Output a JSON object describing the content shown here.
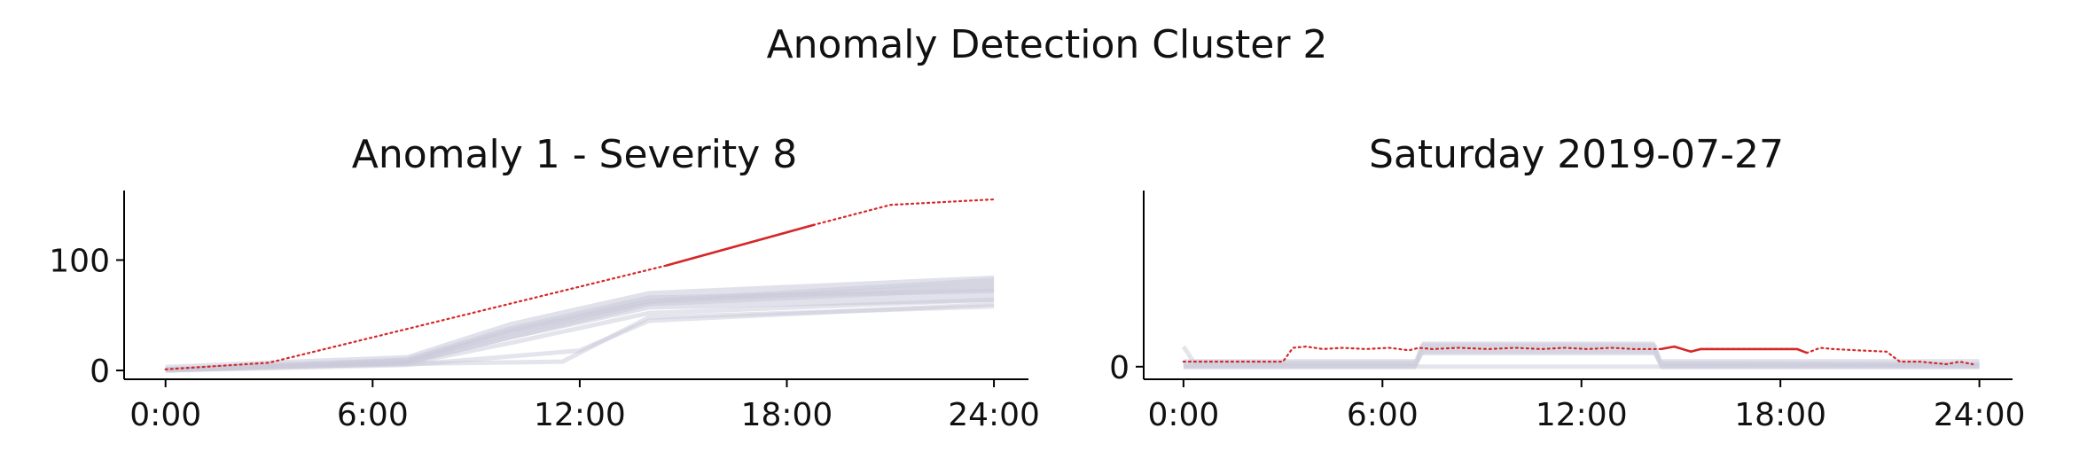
{
  "figure": {
    "suptitle": "Anomaly Detection Cluster 2"
  },
  "chart_data": [
    {
      "type": "line",
      "title": "Anomaly 1 - Severity 8",
      "xlabel": "",
      "ylabel": "",
      "x_tick_labels": [
        "0:00",
        "6:00",
        "12:00",
        "18:00",
        "24:00"
      ],
      "x_ticks": [
        0,
        6,
        12,
        18,
        24
      ],
      "y_tick_labels": [
        "0",
        "100"
      ],
      "y_ticks": [
        0,
        100
      ],
      "xlim": [
        -1.2,
        25
      ],
      "ylim": [
        -8,
        163
      ],
      "grid": false,
      "legend": "none",
      "colors": {
        "highlight": "#d62728",
        "background": "#c9c9da"
      },
      "background_series_band": {
        "x": [
          0,
          3,
          7,
          10,
          14,
          24
        ],
        "low": [
          0,
          2,
          5,
          28,
          55,
          62
        ],
        "high": [
          5,
          9,
          14,
          44,
          72,
          86
        ]
      },
      "background_series": [
        {
          "x": [
            0,
            3,
            7,
            10,
            14,
            24
          ],
          "values": [
            1,
            5,
            9,
            36,
            63,
            82
          ]
        },
        {
          "x": [
            0,
            3,
            7,
            10,
            14,
            24
          ],
          "values": [
            1,
            4,
            8,
            34,
            62,
            78
          ]
        },
        {
          "x": [
            0,
            3,
            7,
            10,
            14,
            24
          ],
          "values": [
            0,
            3,
            7,
            30,
            60,
            74
          ]
        },
        {
          "x": [
            0,
            3,
            7,
            10,
            14,
            24
          ],
          "values": [
            1,
            4,
            10,
            38,
            66,
            72
          ]
        },
        {
          "x": [
            0,
            3,
            7,
            12,
            14,
            24
          ],
          "values": [
            0,
            2,
            5,
            18,
            45,
            60
          ]
        },
        {
          "x": [
            0,
            3,
            7,
            11.5,
            14,
            24
          ],
          "values": [
            0,
            3,
            6,
            8,
            48,
            58
          ]
        },
        {
          "x": [
            0,
            3,
            7,
            10,
            14,
            24
          ],
          "values": [
            0,
            3,
            6,
            25,
            52,
            64
          ]
        }
      ],
      "highlight_series": {
        "dotted": {
          "x": [
            0,
            3,
            14.5,
            18.8,
            21,
            24
          ],
          "values": [
            1,
            7,
            95,
            132,
            150,
            155
          ]
        },
        "solid": {
          "x": [
            14.5,
            18.8
          ],
          "values": [
            95,
            132
          ]
        }
      }
    },
    {
      "type": "line",
      "title": "Saturday 2019-07-27",
      "xlabel": "",
      "ylabel": "",
      "x_tick_labels": [
        "0:00",
        "6:00",
        "12:00",
        "18:00",
        "24:00"
      ],
      "x_ticks": [
        0,
        6,
        12,
        18,
        24
      ],
      "y_tick_labels": [
        "0"
      ],
      "y_ticks": [
        0
      ],
      "xlim": [
        -1.2,
        25
      ],
      "ylim": [
        -1,
        14
      ],
      "grid": false,
      "legend": "none",
      "colors": {
        "highlight": "#d62728",
        "background": "#c9c9da"
      },
      "background_series_band": {
        "x": [
          0,
          3,
          7,
          7.2,
          14.2,
          14.4,
          24
        ],
        "low": [
          -0.2,
          -0.2,
          -0.2,
          0.9,
          0.9,
          -0.2,
          -0.2
        ],
        "high": [
          0.6,
          0.6,
          0.6,
          2.0,
          2.0,
          0.6,
          0.6
        ]
      },
      "background_series": [
        {
          "x": [
            0,
            0.3,
            3,
            7,
            7.2,
            14.2,
            14.4,
            24
          ],
          "values": [
            1.6,
            0.4,
            0.3,
            0.3,
            1.7,
            1.7,
            0.3,
            0.2
          ]
        },
        {
          "x": [
            0,
            3,
            7,
            7.2,
            14.2,
            14.4,
            24
          ],
          "values": [
            0.1,
            0.1,
            0.1,
            1.2,
            1.2,
            0.1,
            0.1
          ]
        },
        {
          "x": [
            0,
            24
          ],
          "values": [
            0.0,
            0.0
          ]
        }
      ],
      "highlight_series": {
        "dotted": {
          "x": [
            0,
            1.5,
            3,
            3.3,
            3.7,
            4.2,
            4.8,
            5.5,
            6.2,
            6.8,
            7.1,
            7.5,
            8.3,
            9.2,
            10,
            10.8,
            11.5,
            12.2,
            12.9,
            13.6,
            14,
            14.4,
            14.8,
            15.3,
            15.6,
            18.5,
            18.8,
            19.2,
            19.6,
            20.3,
            21.2,
            21.6,
            22.2,
            23,
            23.4,
            23.8
          ],
          "values": [
            0.4,
            0.4,
            0.4,
            1.5,
            1.6,
            1.4,
            1.5,
            1.4,
            1.5,
            1.3,
            1.5,
            1.4,
            1.5,
            1.4,
            1.5,
            1.4,
            1.5,
            1.4,
            1.5,
            1.4,
            1.4,
            1.4,
            1.6,
            1.2,
            1.4,
            1.4,
            1.1,
            1.5,
            1.4,
            1.3,
            1.2,
            0.4,
            0.4,
            0.2,
            0.4,
            0.2
          ]
        },
        "solid": {
          "x": [
            14.4,
            14.8,
            15.3,
            15.6,
            18.5,
            18.8
          ],
          "values": [
            1.4,
            1.6,
            1.2,
            1.4,
            1.4,
            1.1
          ]
        }
      }
    }
  ]
}
